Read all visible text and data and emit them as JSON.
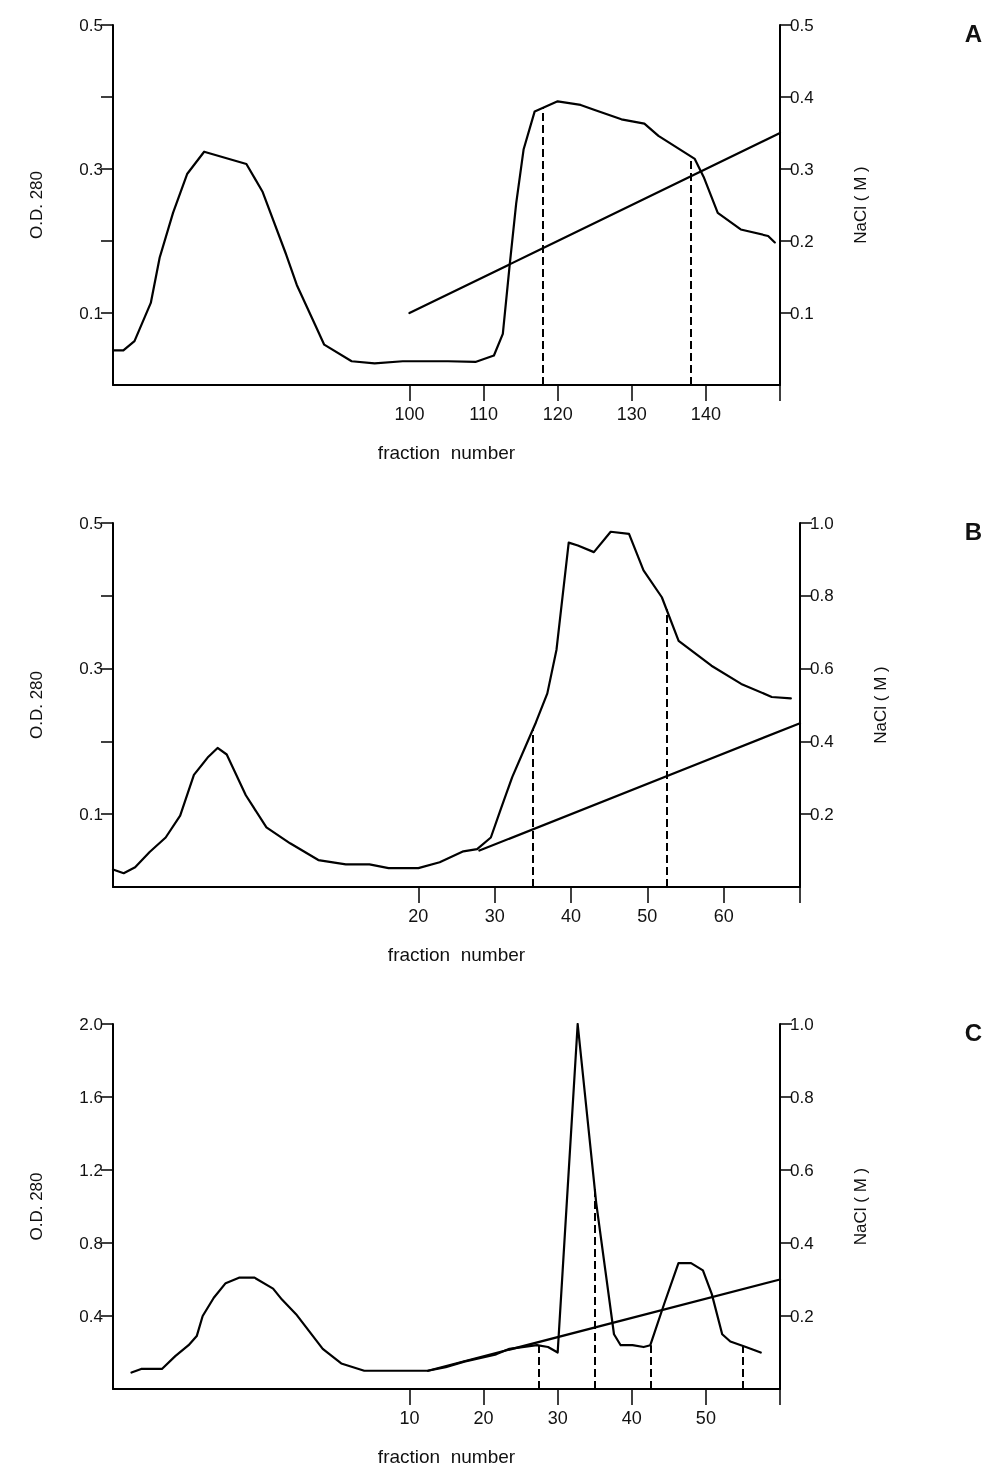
{
  "chart_data": [
    {
      "type": "line",
      "annotations": [
        "A"
      ],
      "xlabel": "fraction  number",
      "ylabel": "O.D. 280",
      "y2label": "NaCl ( M )",
      "xlim": [
        60,
        150
      ],
      "xticks": [
        100,
        110,
        120,
        130,
        140,
        {
          "value": 150,
          "label": null
        }
      ],
      "ylim": [
        0,
        0.5
      ],
      "yticks": [
        0.1,
        {
          "value": 0.2,
          "label": null
        },
        0.3,
        {
          "value": 0.4,
          "label": null
        },
        0.5
      ],
      "y2lim": [
        0,
        0.5
      ],
      "y2ticks": [
        0.1,
        0.2,
        0.3,
        0.4,
        0.5
      ],
      "series": [
        {
          "color": "#000000",
          "x": [
            60,
            61.4,
            62.9,
            65.1,
            66.3,
            68.1,
            70,
            72.3,
            78,
            80.2,
            83.3,
            84.8,
            87.3,
            88.5,
            92.2,
            95.3,
            99.1,
            101.8,
            105.2,
            108.9,
            111.4,
            112.6,
            113.5,
            114.4,
            115.4,
            116.9,
            120,
            123.1,
            125,
            128.6,
            131.7,
            133.6,
            138.5,
            139.7,
            141.6,
            144.7,
            148.4,
            149.3
          ],
          "values": [
            0.048,
            0.048,
            0.061,
            0.114,
            0.177,
            0.239,
            0.293,
            0.324,
            0.307,
            0.268,
            0.183,
            0.139,
            0.083,
            0.056,
            0.033,
            0.03,
            0.033,
            0.033,
            0.033,
            0.032,
            0.041,
            0.071,
            0.164,
            0.252,
            0.327,
            0.38,
            0.394,
            0.389,
            0.382,
            0.369,
            0.363,
            0.346,
            0.314,
            0.289,
            0.239,
            0.216,
            0.207,
            0.198
          ]
        },
        {
          "color": "#000000",
          "axis": "y2",
          "x": [
            100,
            150
          ],
          "values": [
            0.1,
            0.35
          ]
        }
      ],
      "ref_lines": [
        {
          "axis": "x",
          "value": 118,
          "line_style": "dashed"
        },
        {
          "axis": "x",
          "value": 138,
          "line_style": "dashed"
        }
      ]
    },
    {
      "type": "line",
      "annotations": [
        "B"
      ],
      "xlabel": "fraction  number",
      "ylabel": "O.D. 280",
      "y2label": "NaCl ( M )",
      "xlim": [
        -20,
        70
      ],
      "xticks": [
        20,
        30,
        40,
        50,
        60,
        {
          "value": 70,
          "label": null
        }
      ],
      "ylim": [
        0,
        0.5
      ],
      "yticks": [
        0.1,
        {
          "value": 0.2,
          "label": null
        },
        0.3,
        {
          "value": 0.4,
          "label": null
        },
        0.5
      ],
      "y2lim": [
        0,
        1
      ],
      "y2ticks": [
        0.2,
        0.4,
        0.6,
        0.8,
        {
          "value": 1,
          "label": "1.0"
        }
      ],
      "series": [
        {
          "color": "#000000",
          "x": [
            -20,
            -18.6,
            -17.1,
            -15.2,
            -13.1,
            -11.2,
            -9.4,
            -7.5,
            -6.3,
            -5.1,
            -2.6,
            0.1,
            3.2,
            6.9,
            10.5,
            13.6,
            16.1,
            20,
            22.8,
            25.9,
            27.7,
            29.5,
            30.8,
            32.3,
            35.4,
            36.9,
            38.1,
            39.7,
            40.9,
            43,
            45.2,
            47.6,
            49.5,
            51.9,
            54.1,
            58.4,
            62.3,
            66.3,
            68.8
          ],
          "values": [
            0.024,
            0.019,
            0.027,
            0.048,
            0.068,
            0.098,
            0.154,
            0.179,
            0.191,
            0.182,
            0.126,
            0.082,
            0.06,
            0.037,
            0.031,
            0.031,
            0.026,
            0.026,
            0.034,
            0.049,
            0.052,
            0.068,
            0.107,
            0.151,
            0.226,
            0.266,
            0.326,
            0.473,
            0.469,
            0.46,
            0.488,
            0.485,
            0.435,
            0.398,
            0.338,
            0.304,
            0.279,
            0.261,
            0.259
          ]
        },
        {
          "color": "#000000",
          "axis": "y2",
          "x": [
            28,
            70
          ],
          "values": [
            0.1,
            0.45
          ]
        }
      ],
      "ref_lines": [
        {
          "axis": "x",
          "value": 35,
          "line_style": "dashed"
        },
        {
          "axis": "x",
          "value": 52.5,
          "line_style": "dashed"
        }
      ]
    },
    {
      "type": "line",
      "annotations": [
        "C"
      ],
      "xlabel": "fraction  number",
      "ylabel": "O.D. 280",
      "y2label": "NaCl ( M )",
      "xlim": [
        -30,
        60
      ],
      "xticks": [
        10,
        20,
        30,
        40,
        50,
        {
          "value": 60,
          "label": null
        }
      ],
      "ylim": [
        0,
        2
      ],
      "yticks": [
        0.4,
        0.8,
        1.2,
        1.6,
        {
          "value": 2,
          "label": "2.0"
        }
      ],
      "y2lim": [
        0,
        1
      ],
      "y2ticks": [
        0.2,
        0.4,
        0.6,
        0.8,
        {
          "value": 1,
          "label": "1.0"
        }
      ],
      "series": [
        {
          "color": "#000000",
          "x": [
            -27.5,
            -26.2,
            -23.4,
            -21.6,
            -19.8,
            -18.7,
            -17.9,
            -16.4,
            -14.8,
            -13,
            -10.9,
            -8.4,
            -7.2,
            -5.3,
            -1.7,
            0.8,
            3.9,
            6.6,
            7.9,
            12.5,
            14.9,
            17.4,
            21.7,
            23.5,
            27.2,
            28.7,
            30,
            32.7,
            35.2,
            37.6,
            38.5,
            40.1,
            41.6,
            42.5,
            44.4,
            46.3,
            48,
            49.6,
            50.8,
            52.2,
            53.3,
            55.4,
            57.4
          ],
          "values": [
            0.09,
            0.11,
            0.11,
            0.18,
            0.24,
            0.29,
            0.4,
            0.5,
            0.58,
            0.61,
            0.61,
            0.55,
            0.49,
            0.41,
            0.22,
            0.14,
            0.1,
            0.1,
            0.1,
            0.1,
            0.12,
            0.15,
            0.19,
            0.22,
            0.24,
            0.23,
            0.2,
            2,
            1.02,
            0.3,
            0.24,
            0.24,
            0.23,
            0.24,
            0.47,
            0.69,
            0.69,
            0.65,
            0.52,
            0.3,
            0.26,
            0.23,
            0.2
          ]
        },
        {
          "color": "#000000",
          "axis": "y2",
          "x": [
            12.5,
            60
          ],
          "values": [
            0.05,
            0.3
          ]
        }
      ],
      "ref_lines": [
        {
          "axis": "x",
          "value": 27.5,
          "line_style": "dashed"
        },
        {
          "axis": "x",
          "value": 35,
          "line_style": "dashed"
        },
        {
          "axis": "x",
          "value": 42.5,
          "line_style": "dashed"
        },
        {
          "axis": "x",
          "value": 55,
          "line_style": "dashed"
        }
      ]
    }
  ]
}
